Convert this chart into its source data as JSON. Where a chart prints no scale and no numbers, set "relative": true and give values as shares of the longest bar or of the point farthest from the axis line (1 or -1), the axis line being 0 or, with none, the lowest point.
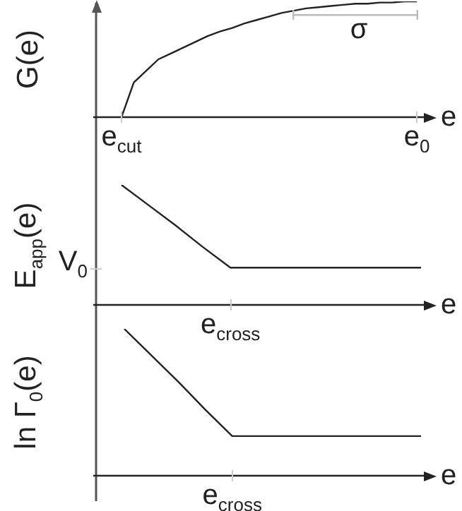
{
  "chart_data": [
    {
      "type": "line",
      "relative": true,
      "ylabel": "G(e)",
      "xlabel": "e",
      "categories": [
        "e$_{cut}$",
        null,
        null,
        null,
        null,
        null,
        null,
        null,
        null,
        null,
        null,
        null,
        null,
        null,
        null,
        null,
        null,
        null,
        null,
        null,
        null,
        null,
        null,
        null,
        "e$_{0}$"
      ],
      "series": [
        {
          "color": "#222222",
          "values": [
            0,
            0.3,
            0.4,
            0.5,
            0.55,
            0.6,
            0.65,
            0.7,
            0.74,
            0.77,
            0.81,
            0.84,
            0.87,
            0.9,
            0.92,
            0.94,
            0.95,
            0.96,
            0.97,
            0.98,
            0.98,
            0.99,
            0.99,
            1,
            1
          ]
        }
      ],
      "annotations": [
        "σ"
      ],
      "marker": "none"
    },
    {
      "type": "line",
      "relative": true,
      "ylabel": "E$_{app}$(e)",
      "xlabel": "e",
      "categories": [
        null,
        null,
        null,
        null,
        null,
        null,
        null,
        null,
        null,
        null,
        null,
        null
      ],
      "series": [
        {
          "color": "#222222",
          "values": [
            1,
            0.83,
            0.66,
            0.48,
            0.31,
            0.31,
            0.31,
            0.31,
            0.31,
            0.31,
            0.31,
            0.31
          ]
        }
      ],
      "annotations": [
        "V$_{0}$",
        "e$_{cross}$"
      ],
      "marker": "none"
    },
    {
      "type": "line",
      "relative": true,
      "ylabel": "ln Γ$_{0}$(e)",
      "xlabel": "e",
      "categories": [
        null,
        null,
        null,
        null,
        null,
        null,
        null,
        null,
        null,
        null,
        null,
        null
      ],
      "series": [
        {
          "color": "#222222",
          "values": [
            1,
            0.82,
            0.64,
            0.45,
            0.27,
            0.27,
            0.27,
            0.27,
            0.27,
            0.27,
            0.27,
            0.27
          ]
        }
      ],
      "annotations": [
        "e$_{cross}$"
      ],
      "marker": "none"
    }
  ]
}
